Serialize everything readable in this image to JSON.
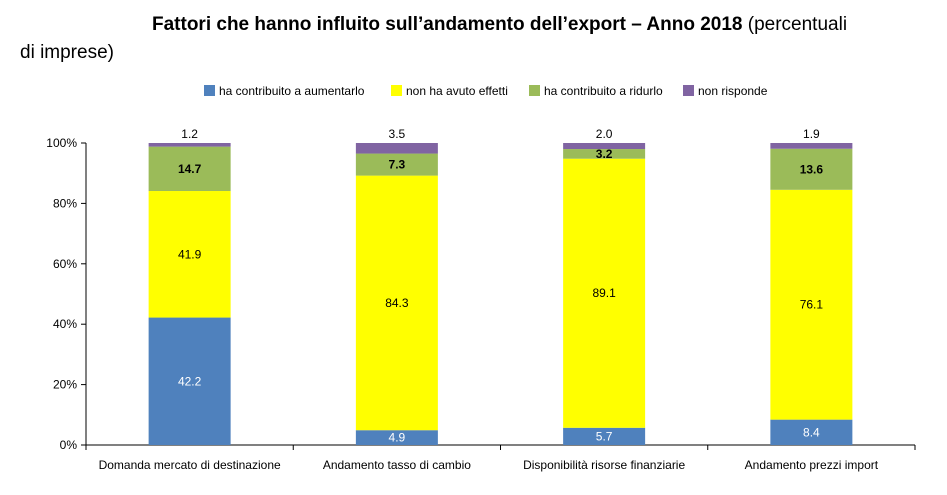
{
  "title": {
    "bold": "Fattori che hanno influito sull’andamento dell’export  – Anno 2018",
    "rest": " (percentuali",
    "line2": "di imprese)"
  },
  "colors": {
    "aumentarlo": "#4f81bd",
    "nessun_effetto": "#ffff00",
    "ridurlo": "#9bbb59",
    "non_risponde": "#8064a2"
  },
  "chart_data": {
    "type": "bar",
    "stacked": true,
    "categories": [
      "Domanda mercato di destinazione",
      "Andamento  tasso di cambio",
      "Disponibilità  risorse finanziarie",
      "Andamento  prezzi import"
    ],
    "series": [
      {
        "name": "ha contribuito a aumentarlo",
        "color": "#4f81bd",
        "values": [
          42.2,
          4.9,
          5.7,
          8.4
        ]
      },
      {
        "name": "non ha avuto effetti",
        "color": "#ffff00",
        "values": [
          41.9,
          84.3,
          89.1,
          76.1
        ]
      },
      {
        "name": "ha contribuito a ridurlo",
        "color": "#9bbb59",
        "values": [
          14.7,
          7.3,
          3.2,
          13.6
        ]
      },
      {
        "name": "non risponde",
        "color": "#8064a2",
        "values": [
          1.2,
          3.5,
          2.0,
          1.9
        ]
      }
    ],
    "ylim": [
      0,
      100
    ],
    "yticks": [
      "0%",
      "20%",
      "40%",
      "60%",
      "80%",
      "100%"
    ],
    "legend": "top"
  }
}
